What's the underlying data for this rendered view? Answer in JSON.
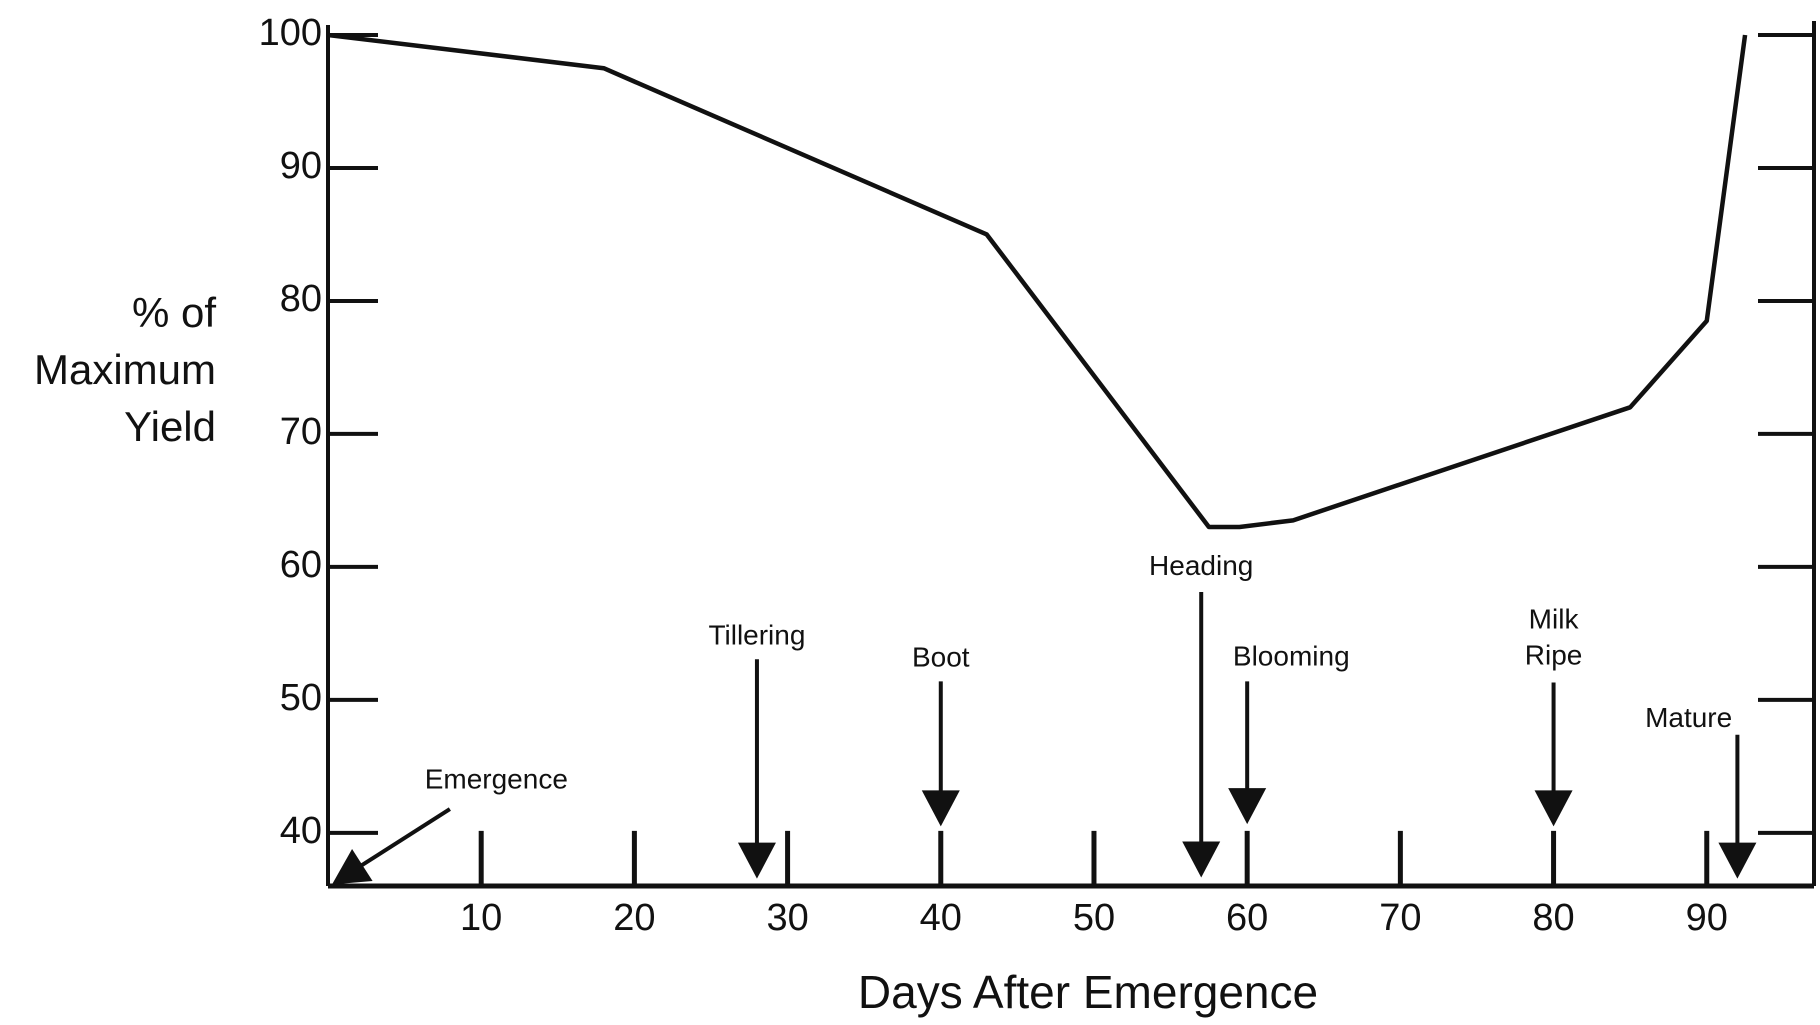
{
  "chart_data": {
    "type": "line",
    "x": [
      0,
      18,
      43,
      57.5,
      59.5,
      63,
      85,
      90,
      92.5
    ],
    "values": [
      100,
      97.5,
      85,
      63,
      63,
      63.5,
      72,
      78.5,
      100
    ],
    "color": "#111111",
    "xlabel": "Days After Emergence",
    "ylabel": [
      "% of",
      "Maximum",
      "Yield"
    ],
    "xlim": [
      0,
      97
    ],
    "xticks": [
      10,
      20,
      30,
      40,
      50,
      60,
      70,
      80,
      90
    ],
    "ylim": [
      36,
      100
    ],
    "yticks": [
      40,
      50,
      60,
      70,
      80,
      90,
      100
    ],
    "annotations": [
      {
        "lines": [
          "Emergence"
        ],
        "x": 0
      },
      {
        "lines": [
          "Tillering"
        ],
        "x": 28
      },
      {
        "lines": [
          "Boot"
        ],
        "x": 40
      },
      {
        "lines": [
          "Heading"
        ],
        "x": 57
      },
      {
        "lines": [
          "Blooming"
        ],
        "x": 60
      },
      {
        "lines": [
          "Milk",
          "Ripe"
        ],
        "x": 80
      },
      {
        "lines": [
          "Mature"
        ],
        "x": 92
      }
    ]
  }
}
